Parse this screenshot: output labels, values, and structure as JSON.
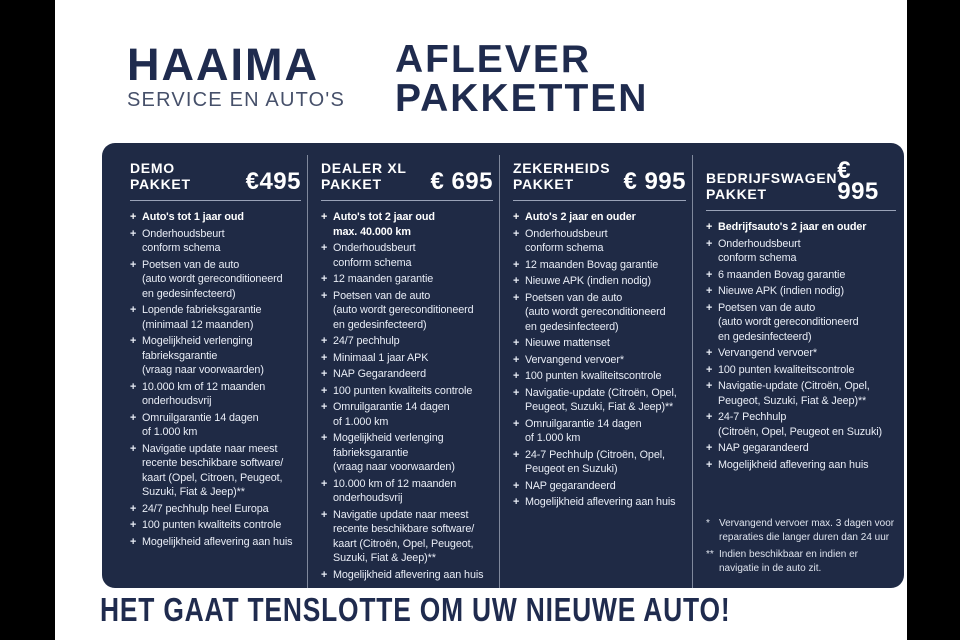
{
  "brand": {
    "name": "HAAIMA",
    "tagline": "SERVICE EN AUTO'S"
  },
  "title": {
    "line1": "AFLEVER",
    "line2": "PAKKETTEN"
  },
  "packages": [
    {
      "name": "DEMO\nPAKKET",
      "price": "€495",
      "items": [
        {
          "text": "Auto's tot 1 jaar oud",
          "bold": true
        },
        {
          "text": "Onderhoudsbeurt\nconform schema"
        },
        {
          "text": "Poetsen van de auto\n(auto wordt gereconditioneerd\nen gedesinfecteerd)"
        },
        {
          "text": "Lopende fabrieksgarantie\n(minimaal 12 maanden)"
        },
        {
          "text": "Mogelijkheid verlenging\nfabrieksgarantie\n(vraag naar voorwaarden)"
        },
        {
          "text": "10.000 km of 12 maanden\nonderhoudsvrij"
        },
        {
          "text": "Omruilgarantie 14 dagen\nof 1.000 km"
        },
        {
          "text": "Navigatie update naar meest\nrecente beschikbare software/\nkaart (Opel, Citroen, Peugeot,\nSuzuki, Fiat & Jeep)**"
        },
        {
          "text": "24/7 pechhulp heel Europa"
        },
        {
          "text": "100 punten kwaliteits controle"
        },
        {
          "text": "Mogelijkheid aflevering aan huis"
        }
      ]
    },
    {
      "name": "DEALER XL\nPAKKET",
      "price": "€ 695",
      "items": [
        {
          "text": "Auto's tot 2 jaar oud\nmax. 40.000 km",
          "bold": true
        },
        {
          "text": "Onderhoudsbeurt\nconform schema"
        },
        {
          "text": "12 maanden garantie"
        },
        {
          "text": "Poetsen van de auto\n(auto wordt gereconditioneerd\nen gedesinfecteerd)"
        },
        {
          "text": "24/7 pechhulp"
        },
        {
          "text": "Minimaal 1 jaar APK"
        },
        {
          "text": "NAP Gegarandeerd"
        },
        {
          "text": "100 punten kwaliteits controle"
        },
        {
          "text": "Omruilgarantie 14 dagen\nof 1.000 km"
        },
        {
          "text": "Mogelijkheid verlenging\nfabrieksgarantie\n(vraag naar voorwaarden)"
        },
        {
          "text": "10.000 km of 12 maanden\nonderhoudsvrij"
        },
        {
          "text": "Navigatie update naar meest\nrecente beschikbare software/\nkaart (Citroën, Opel, Peugeot,\nSuzuki, Fiat & Jeep)**"
        },
        {
          "text": "Mogelijkheid aflevering aan huis"
        }
      ]
    },
    {
      "name": "ZEKERHEIDS\nPAKKET",
      "price": "€ 995",
      "items": [
        {
          "text": "Auto's 2 jaar en ouder",
          "bold": true
        },
        {
          "text": "Onderhoudsbeurt\nconform schema"
        },
        {
          "text": "12 maanden Bovag garantie"
        },
        {
          "text": "Nieuwe APK (indien nodig)"
        },
        {
          "text": "Poetsen van de auto\n(auto wordt gereconditioneerd\nen gedesinfecteerd)"
        },
        {
          "text": "Nieuwe mattenset"
        },
        {
          "text": "Vervangend vervoer*"
        },
        {
          "text": "100 punten kwaliteitscontrole"
        },
        {
          "text": "Navigatie-update (Citroën, Opel,\nPeugeot, Suzuki, Fiat & Jeep)**"
        },
        {
          "text": "Omruilgarantie 14 dagen\nof 1.000 km"
        },
        {
          "text": "24-7 Pechhulp (Citroën, Opel,\nPeugeot en Suzuki)"
        },
        {
          "text": "NAP gegarandeerd"
        },
        {
          "text": "Mogelijkheid aflevering aan huis"
        }
      ]
    },
    {
      "name": "BEDRIJFSWAGEN\nPAKKET",
      "price": "€ 995",
      "items": [
        {
          "text": "Bedrijfsauto's 2 jaar en ouder",
          "bold": true
        },
        {
          "text": "Onderhoudsbeurt\nconform schema"
        },
        {
          "text": "6 maanden Bovag garantie"
        },
        {
          "text": "Nieuwe APK (indien nodig)"
        },
        {
          "text": "Poetsen van de auto\n(auto wordt gereconditioneerd\nen gedesinfecteerd)"
        },
        {
          "text": "Vervangend vervoer*"
        },
        {
          "text": "100 punten kwaliteitscontrole"
        },
        {
          "text": "Navigatie-update (Citroën, Opel,\nPeugeot, Suzuki, Fiat & Jeep)**"
        },
        {
          "text": "24-7 Pechhulp\n(Citroën, Opel, Peugeot en Suzuki)"
        },
        {
          "text": "NAP gegarandeerd"
        },
        {
          "text": "Mogelijkheid aflevering aan huis"
        }
      ]
    }
  ],
  "footnotes": [
    {
      "marker": "*",
      "text": "Vervangend vervoer max. 3 dagen voor\nreparaties die langer duren dan 24 uur"
    },
    {
      "marker": "**",
      "text": "Indien beschikbaar en indien er\nnavigatie in de auto zit."
    }
  ],
  "footer": {
    "slogan": "HET GAAT TENSLOTTE OM UW NIEUWE AUTO!"
  },
  "colors": {
    "pillarbox": "#000000",
    "page_background": "#ffffff",
    "panel_background": "#1f2a45",
    "navy_text": "#1f2b4e",
    "panel_text": "#e9edf6",
    "rule": "#9aa3b8"
  }
}
